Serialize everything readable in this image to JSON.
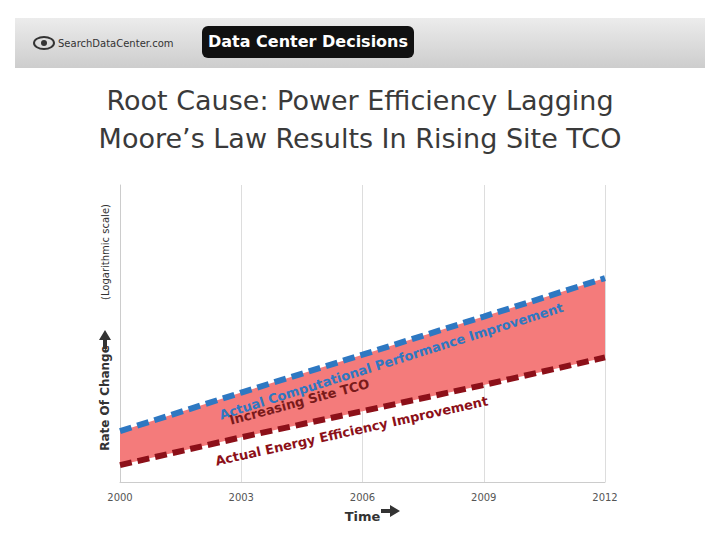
{
  "header": {
    "logo": "SearchDataCenter.com",
    "badge": "Data Center Decisions"
  },
  "chart_data": {
    "type": "line",
    "title": "Root Cause: Power Efficiency Lagging\nMoore’s Law Results In Rising Site TCO",
    "xlabel": "Time",
    "ylabel": "Rate Of Change",
    "ylabel_note": "(Logarithmic scale)",
    "x": [
      2000,
      2003,
      2006,
      2009,
      2012
    ],
    "series": [
      {
        "name": "Actual Computational Performance Improvement",
        "color": "#2e78c2",
        "line_style": "dashed",
        "values": [
          2.2,
          4.0,
          7.2,
          13.0,
          23.6
        ]
      },
      {
        "name": "Actual Energy Efficiency Improvement",
        "color": "#8c1019",
        "line_style": "dashed",
        "values": [
          1.3,
          2.0,
          3.0,
          4.5,
          6.9
        ]
      }
    ],
    "band": {
      "text": "Increasing Site TCO",
      "color": "#f47b7b"
    },
    "xlim": [
      2000,
      2012
    ],
    "xticks": [
      2000,
      2003,
      2006,
      2009,
      2012
    ],
    "ylim": [
      1,
      100
    ],
    "log": "y",
    "grid": true,
    "tick_labels": "x"
  }
}
